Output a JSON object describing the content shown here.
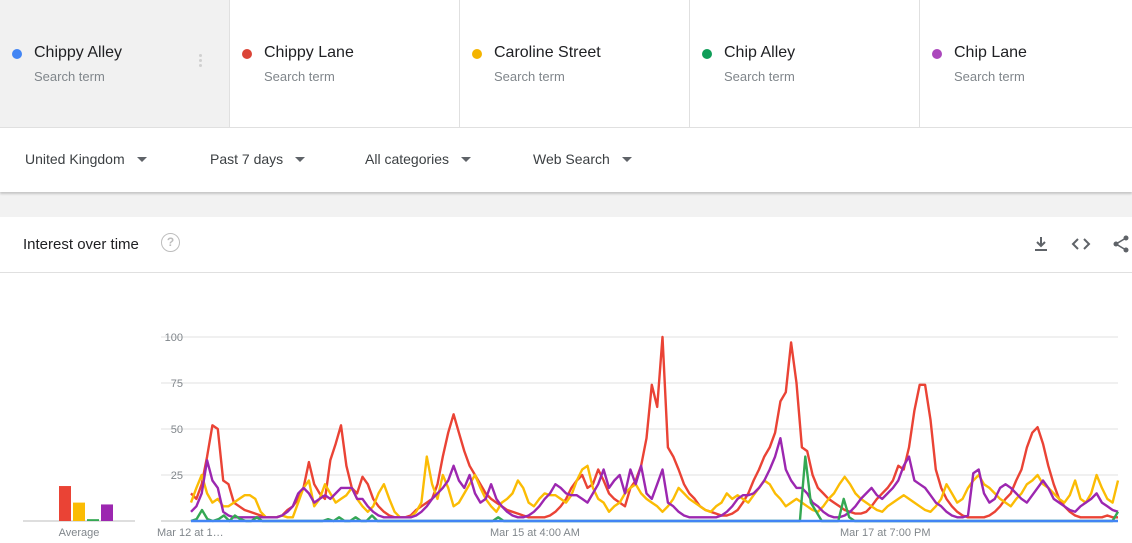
{
  "terms": [
    {
      "name": "Chippy Alley",
      "sub": "Search term",
      "color": "#4285f4"
    },
    {
      "name": "Chippy Lane",
      "sub": "Search term",
      "color": "#db4437"
    },
    {
      "name": "Caroline Street",
      "sub": "Search term",
      "color": "#f4b400"
    },
    {
      "name": "Chip Alley",
      "sub": "Search term",
      "color": "#0f9d58"
    },
    {
      "name": "Chip Lane",
      "sub": "Search term",
      "color": "#ab47bc"
    }
  ],
  "filters": {
    "region": "United Kingdom",
    "period": "Past 7 days",
    "category": "All categories",
    "search_type": "Web Search"
  },
  "card": {
    "title": "Interest over time",
    "help_glyph": "?",
    "icons": [
      "download-icon",
      "embed-icon",
      "share-icon"
    ]
  },
  "chart_data": {
    "type": "line",
    "title": "",
    "xlabel": "",
    "ylabel": "",
    "ylim": [
      0,
      100
    ],
    "yticks": [
      25,
      50,
      75,
      100
    ],
    "grid": true,
    "x_tick_labels": [
      "Mar 12 at 1…",
      "Mar 15 at 4:00 AM",
      "Mar 17 at 7:00 PM"
    ],
    "average_label": "Average",
    "averages": [
      {
        "series": "Chippy Alley",
        "value": 0
      },
      {
        "series": "Chippy Lane",
        "value": 19
      },
      {
        "series": "Caroline Street",
        "value": 10
      },
      {
        "series": "Chip Alley",
        "value": 1
      },
      {
        "series": "Chip Lane",
        "value": 9
      }
    ],
    "series": [
      {
        "name": "Chippy Lane",
        "color": "#ea4335",
        "values": [
          15,
          12,
          20,
          35,
          52,
          50,
          22,
          20,
          10,
          8,
          6,
          5,
          4,
          3,
          2,
          2,
          2,
          3,
          6,
          8,
          12,
          18,
          32,
          20,
          15,
          12,
          33,
          42,
          52,
          30,
          18,
          15,
          24,
          20,
          12,
          8,
          5,
          3,
          2,
          2,
          2,
          3,
          6,
          8,
          10,
          12,
          20,
          35,
          48,
          58,
          48,
          38,
          30,
          25,
          20,
          15,
          12,
          10,
          8,
          6,
          5,
          4,
          3,
          2,
          2,
          2,
          2,
          3,
          5,
          8,
          12,
          18,
          22,
          25,
          18,
          20,
          28,
          22,
          15,
          12,
          10,
          8,
          18,
          22,
          30,
          45,
          74,
          62,
          100,
          40,
          35,
          28,
          20,
          15,
          12,
          8,
          6,
          5,
          4,
          3,
          3,
          4,
          6,
          10,
          15,
          22,
          28,
          35,
          40,
          48,
          65,
          70,
          97,
          75,
          40,
          38,
          25,
          18,
          15,
          12,
          10,
          8,
          6,
          5,
          4,
          4,
          5,
          8,
          12,
          15,
          18,
          22,
          30,
          28,
          40,
          60,
          74,
          74,
          55,
          28,
          18,
          12,
          8,
          5,
          3,
          2,
          2,
          2,
          2,
          3,
          5,
          8,
          12,
          15,
          22,
          28,
          40,
          48,
          51,
          42,
          30,
          20,
          12,
          8,
          5,
          3,
          2,
          2,
          2,
          2,
          2,
          3,
          2,
          2
        ]
      },
      {
        "name": "Caroline Street",
        "color": "#fbbc04",
        "values": [
          10,
          18,
          25,
          15,
          10,
          12,
          8,
          8,
          10,
          12,
          14,
          14,
          12,
          5,
          2,
          2,
          2,
          3,
          2,
          2,
          10,
          18,
          22,
          8,
          12,
          20,
          15,
          10,
          12,
          14,
          18,
          12,
          8,
          5,
          8,
          15,
          20,
          12,
          5,
          2,
          2,
          2,
          5,
          10,
          35,
          20,
          12,
          25,
          18,
          8,
          10,
          15,
          20,
          25,
          18,
          12,
          8,
          5,
          10,
          12,
          15,
          22,
          18,
          10,
          8,
          12,
          15,
          14,
          14,
          12,
          10,
          14,
          22,
          28,
          30,
          18,
          12,
          10,
          5,
          8,
          10,
          15,
          18,
          20,
          15,
          12,
          10,
          8,
          5,
          8,
          12,
          18,
          15,
          12,
          10,
          8,
          6,
          5,
          8,
          10,
          15,
          12,
          14,
          12,
          10,
          14,
          18,
          22,
          20,
          15,
          12,
          8,
          10,
          12,
          10,
          8,
          6,
          5,
          8,
          12,
          15,
          20,
          24,
          20,
          15,
          12,
          10,
          8,
          6,
          5,
          8,
          10,
          12,
          14,
          12,
          10,
          8,
          6,
          5,
          8,
          12,
          20,
          15,
          10,
          12,
          18,
          22,
          25,
          20,
          18,
          15,
          12,
          10,
          8,
          12,
          15,
          20,
          22,
          25,
          20,
          18,
          15,
          12,
          10,
          14,
          22,
          12,
          10,
          15,
          25,
          18,
          12,
          10,
          22
        ]
      },
      {
        "name": "Chip Lane",
        "color": "#9c27b0",
        "values": [
          5,
          8,
          15,
          33,
          22,
          18,
          5,
          3,
          2,
          2,
          2,
          2,
          2,
          2,
          2,
          2,
          2,
          3,
          5,
          8,
          15,
          18,
          15,
          10,
          12,
          14,
          12,
          15,
          18,
          18,
          18,
          12,
          12,
          8,
          5,
          3,
          2,
          2,
          2,
          2,
          2,
          2,
          3,
          5,
          8,
          12,
          15,
          18,
          22,
          30,
          22,
          18,
          25,
          15,
          10,
          12,
          20,
          12,
          8,
          5,
          3,
          2,
          2,
          3,
          5,
          8,
          12,
          15,
          20,
          18,
          15,
          14,
          14,
          12,
          10,
          15,
          20,
          28,
          18,
          22,
          25,
          15,
          28,
          20,
          30,
          15,
          12,
          20,
          28,
          10,
          8,
          5,
          3,
          2,
          2,
          2,
          2,
          2,
          2,
          3,
          5,
          8,
          12,
          14,
          14,
          15,
          18,
          22,
          28,
          35,
          45,
          28,
          22,
          18,
          18,
          15,
          10,
          8,
          5,
          3,
          2,
          2,
          3,
          5,
          8,
          12,
          15,
          18,
          14,
          12,
          15,
          18,
          22,
          30,
          35,
          22,
          20,
          18,
          14,
          10,
          8,
          5,
          3,
          2,
          2,
          3,
          26,
          28,
          15,
          10,
          12,
          18,
          20,
          18,
          15,
          12,
          10,
          14,
          18,
          22,
          18,
          12,
          10,
          8,
          6,
          5,
          8,
          10,
          12,
          15,
          10,
          8,
          6,
          5
        ]
      },
      {
        "name": "Chip Alley",
        "color": "#34a853",
        "values": [
          0,
          1,
          6,
          1,
          0,
          1,
          3,
          0,
          3,
          1,
          0,
          0,
          2,
          0,
          0,
          0,
          0,
          0,
          0,
          0,
          0,
          0,
          0,
          0,
          0,
          1,
          0,
          2,
          0,
          0,
          2,
          0,
          0,
          3,
          0,
          0,
          0,
          0,
          0,
          0,
          0,
          0,
          0,
          0,
          0,
          0,
          0,
          0,
          0,
          0,
          0,
          0,
          0,
          0,
          0,
          0,
          2,
          0,
          0,
          0,
          0,
          0,
          0,
          0,
          0,
          0,
          0,
          0,
          0,
          0,
          0,
          0,
          0,
          0,
          0,
          0,
          0,
          0,
          0,
          0,
          0,
          0,
          0,
          0,
          0,
          0,
          0,
          0,
          0,
          0,
          0,
          0,
          0,
          0,
          0,
          0,
          0,
          0,
          0,
          0,
          0,
          0,
          0,
          0,
          0,
          0,
          0,
          0,
          0,
          0,
          0,
          0,
          35,
          10,
          5,
          0,
          0,
          0,
          0,
          12,
          2,
          0,
          0,
          0,
          0,
          0,
          0,
          0,
          0,
          0,
          0,
          0,
          0,
          0,
          0,
          0,
          0,
          0,
          0,
          0,
          0,
          0,
          0,
          0,
          0,
          0,
          0,
          0,
          0,
          0,
          0,
          0,
          0,
          0,
          0,
          0,
          0,
          0,
          0,
          0,
          0,
          0,
          0,
          0,
          0,
          0,
          0,
          0,
          0,
          5
        ]
      },
      {
        "name": "Chippy Alley",
        "color": "#4285f4",
        "values": [
          0,
          0,
          0,
          0,
          0,
          0,
          0,
          0,
          0,
          0,
          0,
          0,
          0,
          0,
          0,
          0,
          0,
          0,
          0,
          0,
          0,
          0,
          0,
          0,
          0,
          0,
          0,
          0,
          0,
          0,
          0,
          0,
          0,
          0,
          0,
          0,
          0,
          0,
          0,
          0,
          0,
          0,
          0,
          0,
          0,
          0,
          0,
          0,
          0,
          0,
          0,
          0,
          0,
          0,
          0,
          0,
          0,
          0,
          0,
          0,
          0,
          0,
          0,
          0,
          0,
          0,
          0,
          0,
          0,
          0,
          0,
          0,
          0,
          0,
          0,
          0,
          0,
          0,
          0,
          0,
          0,
          0,
          0,
          0,
          0,
          0,
          0,
          0,
          0,
          0,
          0,
          0,
          0,
          0,
          0,
          0,
          0,
          0,
          0,
          0,
          0,
          0,
          0,
          0,
          0,
          0,
          0,
          0,
          0,
          0,
          0,
          0,
          0,
          0,
          0,
          0,
          0,
          0,
          0,
          0,
          0,
          0,
          0,
          0,
          0,
          0,
          0,
          0,
          0,
          0,
          0,
          0,
          0,
          0,
          0,
          0,
          0,
          0,
          0,
          0,
          0,
          0,
          0,
          0,
          0,
          0,
          0,
          0,
          0,
          0,
          0,
          0,
          0,
          0,
          0,
          0,
          0,
          0,
          0,
          0,
          0,
          0,
          0,
          0,
          0,
          0,
          0,
          0,
          0,
          0,
          0,
          0,
          0,
          0
        ]
      }
    ]
  }
}
